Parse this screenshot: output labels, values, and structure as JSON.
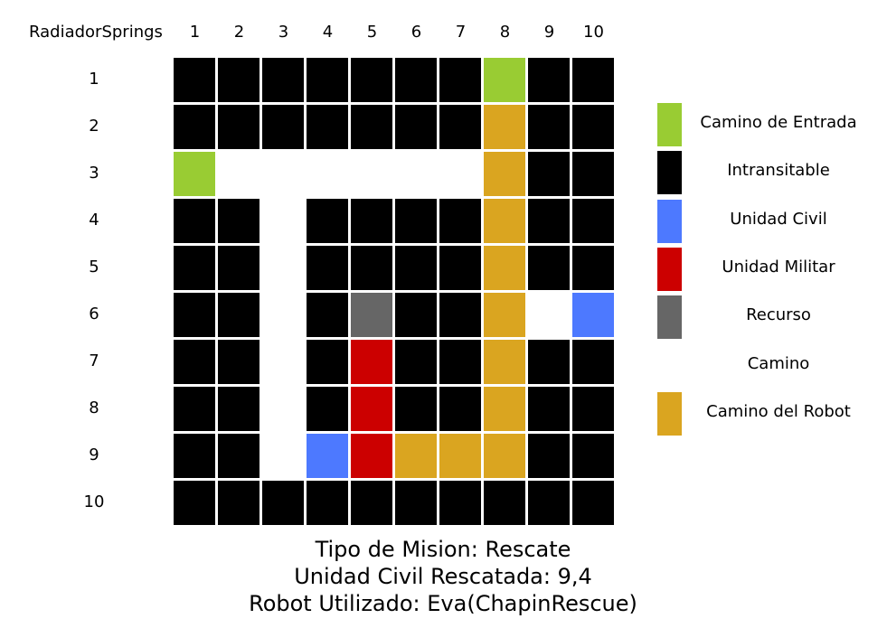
{
  "map": {
    "name": "RadiadorSprings",
    "columns": [
      "1",
      "2",
      "3",
      "4",
      "5",
      "6",
      "7",
      "8",
      "9",
      "10"
    ],
    "rows": [
      "1",
      "2",
      "3",
      "4",
      "5",
      "6",
      "7",
      "8",
      "9",
      "10"
    ],
    "grid": [
      "XXXXXXXEXX",
      "XXXXXXXRXX",
      "E......RXX",
      "XX.XXXXRXX",
      "XX.XXXXRXX",
      "XX.XGXXR.C",
      "XX.XMXXRXX",
      "XX.XMXXRXX",
      "XX.CMRRRXX",
      "XXXXXXXXXX"
    ]
  },
  "legend": [
    {
      "key": "E",
      "label": "Camino de Entrada",
      "color": "#99cc33"
    },
    {
      "key": "X",
      "label": "Intransitable",
      "color": "#000000"
    },
    {
      "key": "C",
      "label": "Unidad Civil",
      "color": "#4d79ff"
    },
    {
      "key": "M",
      "label": "Unidad Militar",
      "color": "#cc0000"
    },
    {
      "key": "G",
      "label": "Recurso",
      "color": "#666666"
    },
    {
      "key": ".",
      "label": "Camino",
      "color": "#ffffff"
    },
    {
      "key": "R",
      "label": "Camino del Robot",
      "color": "#daa520"
    }
  ],
  "summary": {
    "mission_type": "Tipo de Mision: Rescate",
    "rescued_unit": "Unidad Civil Rescatada: 9,4",
    "robot_used": "Robot Utilizado: Eva(ChapinRescue)"
  }
}
